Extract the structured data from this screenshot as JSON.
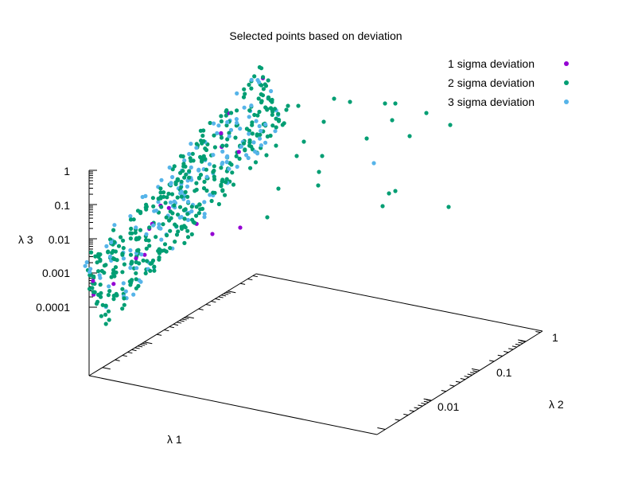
{
  "chart_data": {
    "type": "scatter",
    "title": "Selected points based on deviation",
    "xlabel": "λ 1",
    "ylabel": "λ 2",
    "zlabel": "λ 3",
    "scale": "log",
    "z_ticks": [
      "1",
      "0.1",
      "0.01",
      "0.001",
      "0.0001"
    ],
    "y_ticks": [
      "0.01",
      "0.1",
      "1"
    ],
    "legend_position": "top-right",
    "series": [
      {
        "name": "1 sigma deviation",
        "color": "#9400d3"
      },
      {
        "name": "2 sigma deviation",
        "color": "#009e73"
      },
      {
        "name": "3 sigma deviation",
        "color": "#56b4e9"
      }
    ]
  }
}
